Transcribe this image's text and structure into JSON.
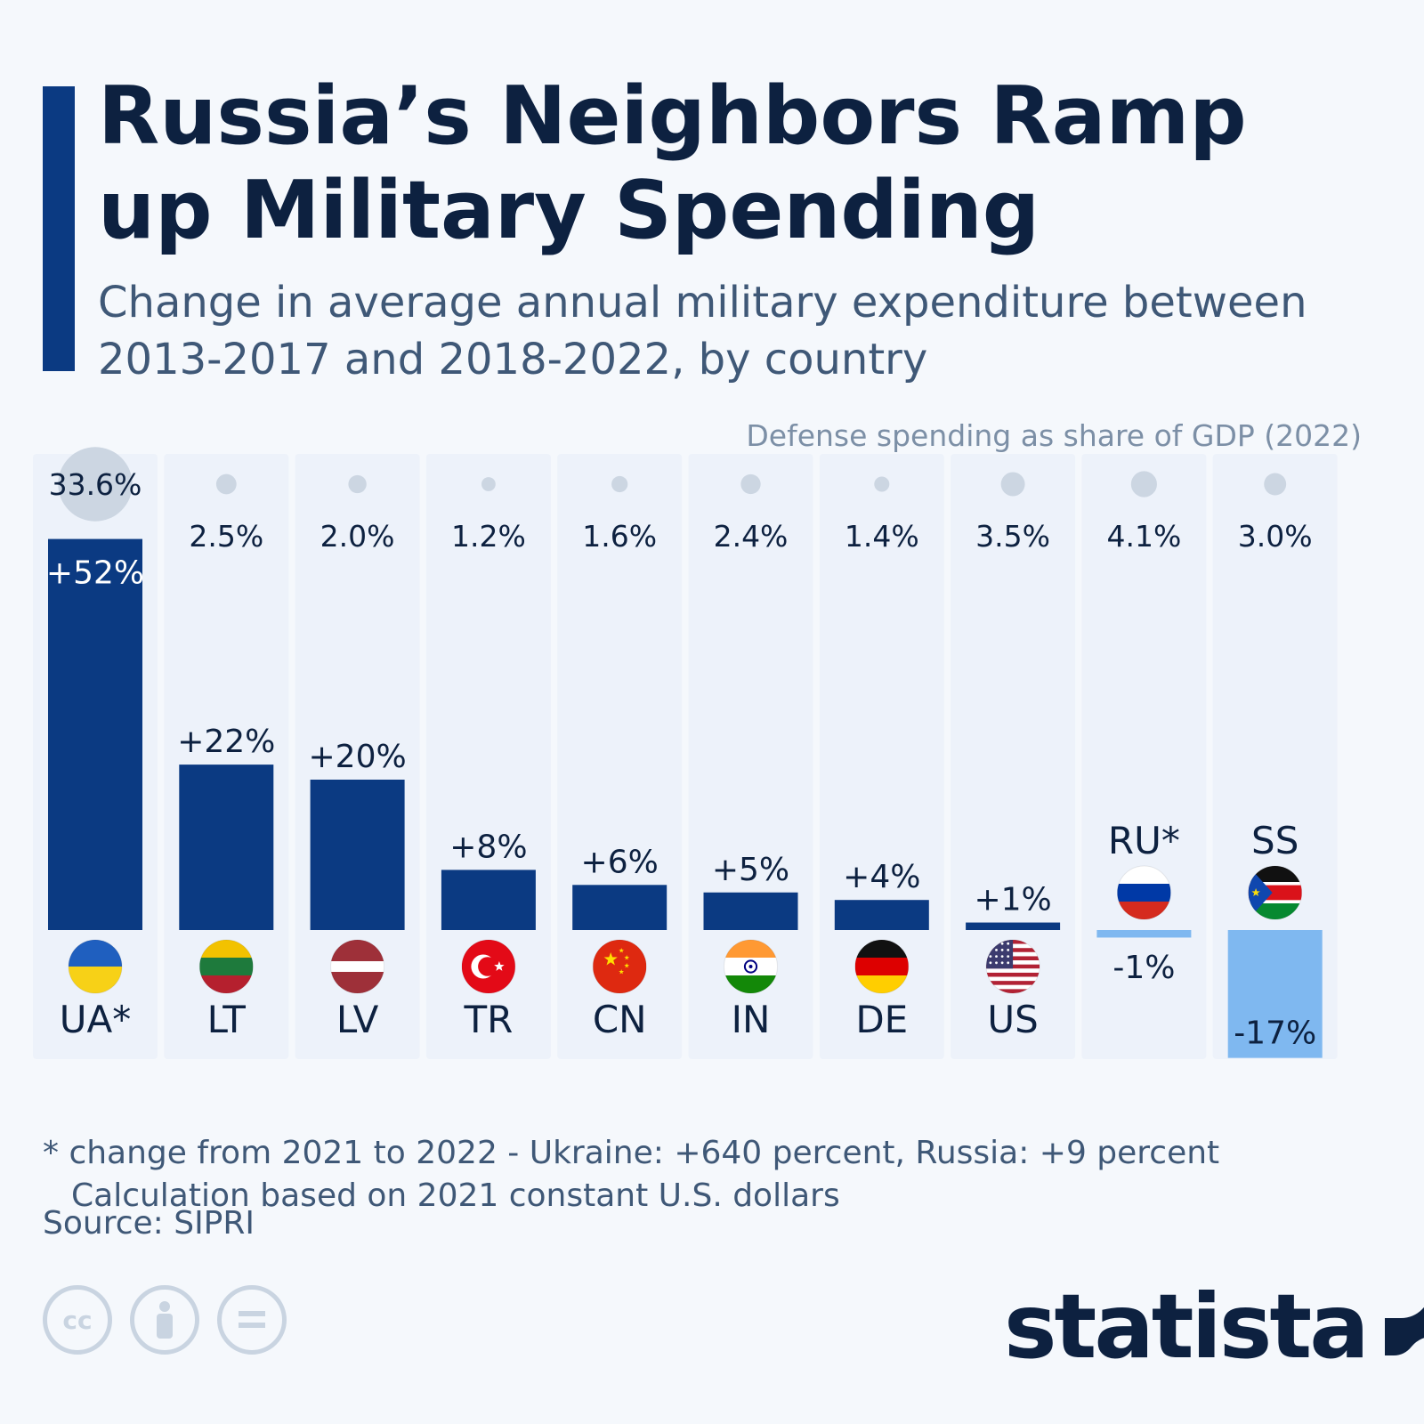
{
  "header": {
    "title": "Russia’s Neighbors Ramp up Military Spending",
    "subtitle": "Change in average annual military expenditure between 2013-2017 and 2018-2022, by country"
  },
  "gdp_legend": "Defense spending as share of GDP (2022)",
  "chart_data": {
    "type": "bar",
    "title": "Russia’s Neighbors Ramp up Military Spending",
    "subtitle": "Change in average annual military expenditure between 2013-2017 and 2018-2022, by country",
    "categories": [
      "UA*",
      "LT",
      "LV",
      "TR",
      "CN",
      "IN",
      "DE",
      "US",
      "RU*",
      "SS"
    ],
    "series": [
      {
        "values": [
          52,
          22,
          20,
          8,
          6,
          5,
          4,
          1,
          -1,
          -17
        ],
        "labels": [
          "+52%",
          "+22%",
          "+20%",
          "+8%",
          "+6%",
          "+5%",
          "+4%",
          "+1%",
          "-1%",
          "-17%"
        ]
      },
      {
        "name": "Defense spending as share of GDP (2022)",
        "values": [
          33.6,
          2.5,
          2.0,
          1.2,
          1.6,
          2.4,
          1.4,
          3.5,
          4.1,
          3.0
        ],
        "labels": [
          "33.6%",
          "2.5%",
          "2.0%",
          "1.2%",
          "1.6%",
          "2.4%",
          "1.4%",
          "3.5%",
          "4.1%",
          "3.0%"
        ]
      }
    ],
    "flags": [
      "ukraine-flag-icon",
      "lithuania-flag-icon",
      "latvia-flag-icon",
      "turkey-flag-icon",
      "china-flag-icon",
      "india-flag-icon",
      "germany-flag-icon",
      "usa-flag-icon",
      "russia-flag-icon",
      "south-sudan-flag-icon"
    ],
    "colors": {
      "positive": "#0b3a82",
      "negative": "#7fb8f0",
      "bubble": "#ccd6e2",
      "column_bg": "#e9f0fa"
    }
  },
  "footnote": {
    "line1": "* change from 2021 to 2022 - Ukraine: +640 percent, Russia: +9 percent",
    "line2": "Calculation based on 2021 constant U.S. dollars"
  },
  "source": "Source: SIPRI",
  "brand": {
    "name": "statista",
    "logo_icon": "statista-logo-icon"
  },
  "license_icons": [
    "cc-icon",
    "attribution-icon",
    "no-derivatives-icon"
  ]
}
